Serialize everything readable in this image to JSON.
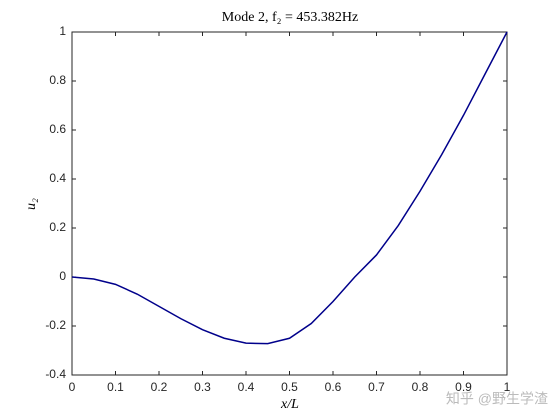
{
  "chart_data": {
    "type": "line",
    "title": "Mode 2, f₂ = 453.382Hz",
    "x_label": "x/L",
    "y_label": "u₂",
    "x": [
      0,
      0.05,
      0.1,
      0.15,
      0.2,
      0.25,
      0.3,
      0.35,
      0.4,
      0.45,
      0.5,
      0.55,
      0.6,
      0.65,
      0.7,
      0.75,
      0.8,
      0.85,
      0.9,
      0.95,
      1
    ],
    "series": [
      {
        "color": "#00008b",
        "values": [
          0,
          -0.008,
          -0.03,
          -0.07,
          -0.12,
          -0.17,
          -0.215,
          -0.25,
          -0.27,
          -0.272,
          -0.25,
          -0.19,
          -0.1,
          0.0,
          0.09,
          0.21,
          0.35,
          0.5,
          0.66,
          0.83,
          1.0
        ]
      }
    ],
    "xlim": [
      0,
      1
    ],
    "xticks": [
      0,
      0.1,
      0.2,
      0.3,
      0.4,
      0.5,
      0.6,
      0.7,
      0.8,
      0.9,
      1
    ],
    "ylim": [
      -0.4,
      1
    ],
    "yticks": [
      -0.4,
      -0.2,
      0,
      0.2,
      0.4,
      0.6,
      0.8,
      1
    ],
    "annotation": "知乎 @野生学渣"
  }
}
